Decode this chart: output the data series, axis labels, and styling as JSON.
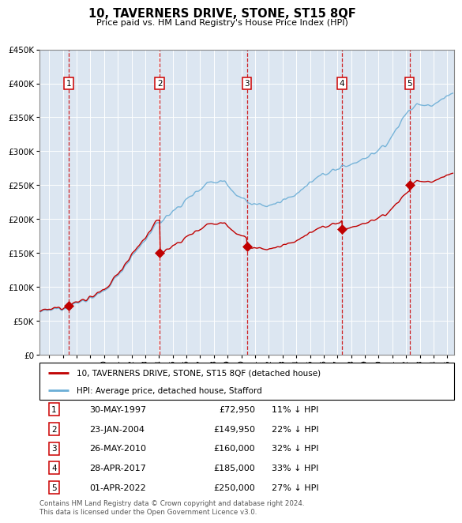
{
  "title": "10, TAVERNERS DRIVE, STONE, ST15 8QF",
  "subtitle": "Price paid vs. HM Land Registry's House Price Index (HPI)",
  "ylim": [
    0,
    450000
  ],
  "yticks": [
    0,
    50000,
    100000,
    150000,
    200000,
    250000,
    300000,
    350000,
    400000,
    450000
  ],
  "xlim_start": 1995.3,
  "xlim_end": 2025.5,
  "sales": [
    {
      "label": 1,
      "date_str": "30-MAY-1997",
      "year": 1997.41,
      "price": 72950
    },
    {
      "label": 2,
      "date_str": "23-JAN-2004",
      "year": 2004.06,
      "price": 149950
    },
    {
      "label": 3,
      "date_str": "26-MAY-2010",
      "year": 2010.4,
      "price": 160000
    },
    {
      "label": 4,
      "date_str": "28-APR-2017",
      "year": 2017.32,
      "price": 185000
    },
    {
      "label": 5,
      "date_str": "01-APR-2022",
      "year": 2022.25,
      "price": 250000
    }
  ],
  "sale_pct": [
    "11%",
    "22%",
    "32%",
    "33%",
    "27%"
  ],
  "hpi_color": "#6baed6",
  "sale_color": "#c00000",
  "dashed_color": "#cc0000",
  "bg_color": "#dce6f1",
  "grid_color": "#ffffff",
  "footer": "Contains HM Land Registry data © Crown copyright and database right 2024.\nThis data is licensed under the Open Government Licence v3.0.",
  "legend1": "10, TAVERNERS DRIVE, STONE, ST15 8QF (detached house)",
  "legend2": "HPI: Average price, detached house, Stafford"
}
